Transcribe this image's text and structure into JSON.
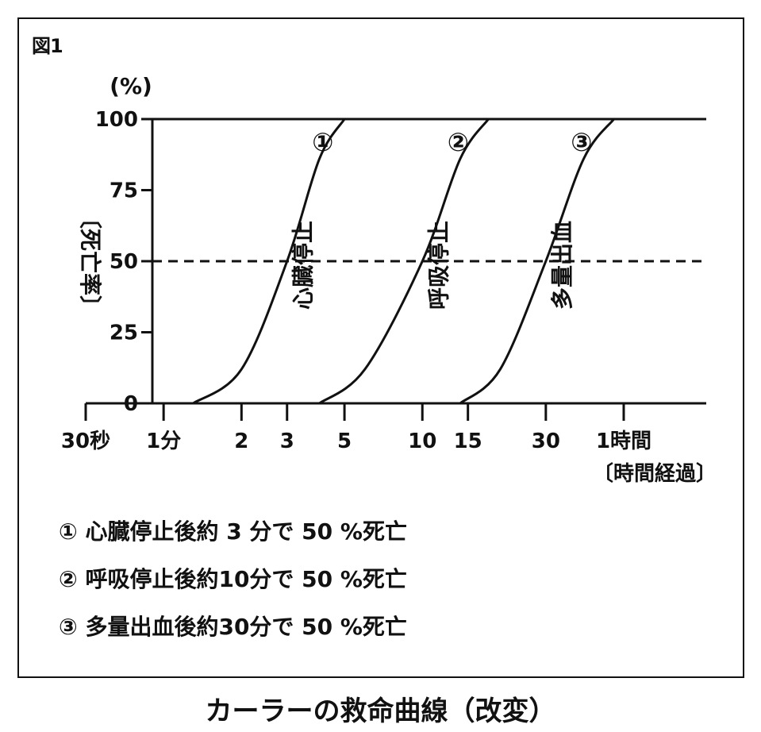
{
  "figure_label": "図1",
  "caption": "カーラーの救命曲線（改変）",
  "chart_data": {
    "type": "line",
    "y_unit_label": "(%)",
    "ylabel_vertical": "〔死亡率〕",
    "ylim": [
      0,
      100
    ],
    "y_ticks": [
      0,
      25,
      50,
      75,
      100
    ],
    "x_scale": "log",
    "x_ticks": [
      {
        "label": "30秒",
        "minutes": 0.5
      },
      {
        "label": "1分",
        "minutes": 1
      },
      {
        "label": "2",
        "minutes": 2
      },
      {
        "label": "3",
        "minutes": 3
      },
      {
        "label": "5",
        "minutes": 5
      },
      {
        "label": "10",
        "minutes": 10
      },
      {
        "label": "15",
        "minutes": 15
      },
      {
        "label": "30",
        "minutes": 30
      },
      {
        "label": "1時間",
        "minutes": 60
      }
    ],
    "xlabel": "〔時間経過〕",
    "reference_line": {
      "y": 50,
      "style": "dashed"
    },
    "series": [
      {
        "marker": "①",
        "name": "心臓停止",
        "points": [
          [
            1.3,
            0
          ],
          [
            2,
            12
          ],
          [
            3,
            50
          ],
          [
            4,
            86
          ],
          [
            5,
            100
          ]
        ]
      },
      {
        "marker": "②",
        "name": "呼吸停止",
        "points": [
          [
            4,
            0
          ],
          [
            6,
            12
          ],
          [
            10,
            50
          ],
          [
            14,
            86
          ],
          [
            18,
            100
          ]
        ]
      },
      {
        "marker": "③",
        "name": "多量出血",
        "points": [
          [
            14,
            0
          ],
          [
            20,
            12
          ],
          [
            30,
            50
          ],
          [
            42,
            86
          ],
          [
            55,
            100
          ]
        ]
      }
    ]
  },
  "legend_lines": [
    "① 心臓停止後約 3 分で 50 %死亡",
    "② 呼吸停止後約10分で 50 %死亡",
    "③ 多量出血後約30分で 50 %死亡"
  ]
}
